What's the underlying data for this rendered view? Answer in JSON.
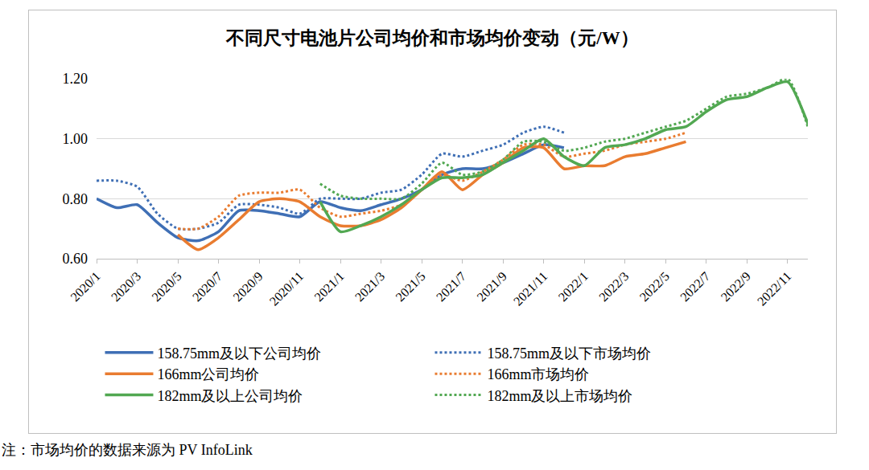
{
  "chart_data": {
    "type": "line",
    "title": "不同尺寸电池片公司均价和市场均价变动（元/W）",
    "annotations": [
      "注：市场均价的数据来源为 PV InfoLink"
    ],
    "categories": [
      "2020/1",
      null,
      "2020/3",
      null,
      "2020/5",
      null,
      "2020/7",
      null,
      "2020/9",
      null,
      "2020/11",
      null,
      "2021/1",
      null,
      "2021/3",
      null,
      "2021/5",
      null,
      "2021/7",
      null,
      "2021/9",
      null,
      "2021/11",
      null,
      "2022/1",
      null,
      "2022/3",
      null,
      "2022/5",
      null,
      "2022/7",
      null,
      "2022/9",
      null,
      "2022/11",
      null
    ],
    "series": [
      {
        "name": "158.75mm及以下公司均价",
        "color": "#3f6fb5",
        "line_style": "solid",
        "values": [
          0.8,
          0.77,
          0.78,
          0.72,
          0.67,
          0.66,
          0.69,
          0.76,
          0.76,
          0.75,
          0.74,
          0.79,
          0.77,
          0.76,
          0.78,
          0.8,
          0.83,
          0.88,
          0.9,
          0.9,
          0.92,
          0.95,
          0.98,
          0.97,
          null,
          null,
          null,
          null,
          null,
          null,
          null,
          null,
          null,
          null,
          null,
          null
        ]
      },
      {
        "name": "158.75mm及以下市场均价",
        "color": "#3f6fb5",
        "line_style": "dotted",
        "values": [
          0.86,
          0.86,
          0.84,
          0.75,
          0.7,
          0.7,
          0.72,
          0.78,
          0.78,
          0.77,
          0.75,
          0.8,
          0.8,
          0.8,
          0.82,
          0.83,
          0.88,
          0.95,
          0.94,
          0.96,
          0.98,
          1.02,
          1.04,
          1.02,
          null,
          null,
          null,
          null,
          null,
          null,
          null,
          null,
          null,
          null,
          null,
          null
        ]
      },
      {
        "name": "166mm公司均价",
        "color": "#e97c30",
        "line_style": "solid",
        "values": [
          null,
          null,
          null,
          null,
          0.68,
          0.63,
          0.67,
          0.73,
          0.79,
          0.8,
          0.79,
          0.74,
          0.71,
          0.71,
          0.73,
          0.77,
          0.83,
          0.89,
          0.83,
          0.88,
          0.92,
          0.97,
          0.97,
          0.9,
          0.91,
          0.91,
          0.94,
          0.95,
          0.97,
          0.99,
          null,
          null,
          null,
          null,
          null,
          null
        ]
      },
      {
        "name": "166mm市场均价",
        "color": "#e97c30",
        "line_style": "dotted",
        "values": [
          null,
          null,
          null,
          null,
          0.7,
          0.7,
          0.74,
          0.81,
          0.82,
          0.82,
          0.83,
          0.77,
          0.74,
          0.75,
          0.76,
          0.78,
          0.83,
          0.88,
          0.86,
          0.89,
          0.93,
          0.98,
          0.98,
          0.94,
          0.95,
          0.96,
          0.98,
          0.99,
          1.0,
          1.02,
          null,
          null,
          null,
          null,
          null,
          null
        ]
      },
      {
        "name": "182mm及以上公司均价",
        "color": "#52a852",
        "line_style": "solid",
        "values": [
          null,
          null,
          null,
          null,
          null,
          null,
          null,
          null,
          null,
          null,
          null,
          0.79,
          0.69,
          0.71,
          0.74,
          0.78,
          0.83,
          0.87,
          0.87,
          0.88,
          0.92,
          0.96,
          1.0,
          0.94,
          0.91,
          0.97,
          0.98,
          1.0,
          1.03,
          1.04,
          1.09,
          1.13,
          1.14,
          1.17,
          1.19,
          1.05
        ]
      },
      {
        "name": "182mm及以上市场均价",
        "color": "#52a852",
        "line_style": "dotted",
        "values": [
          null,
          null,
          null,
          null,
          null,
          null,
          null,
          null,
          null,
          null,
          null,
          0.85,
          0.81,
          0.8,
          0.8,
          0.8,
          0.85,
          0.92,
          0.88,
          0.89,
          0.93,
          0.99,
          0.99,
          0.96,
          0.97,
          0.99,
          1.0,
          1.02,
          1.04,
          1.06,
          1.1,
          1.14,
          1.15,
          1.17,
          1.2,
          1.04
        ]
      }
    ],
    "ylim": [
      0.6,
      1.2
    ],
    "yticks": [
      {
        "value": 0.6,
        "label": "0.60"
      },
      {
        "value": 0.8,
        "label": "0.80"
      },
      {
        "value": 1.0,
        "label": "1.00"
      },
      {
        "value": 1.2,
        "label": "1.20"
      }
    ],
    "grid": true,
    "legend": "bottom"
  }
}
